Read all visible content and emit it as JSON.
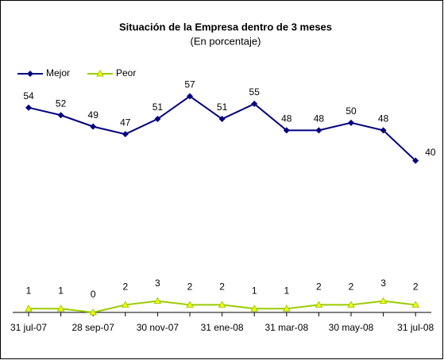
{
  "chart_data": {
    "type": "line",
    "title": "Situación de la Empresa dentro de 3 meses",
    "subtitle": "(En porcentaje)",
    "categories": [
      "31 jul-07",
      null,
      "28 sep-07",
      null,
      "30 nov-07",
      null,
      "31 ene-08",
      null,
      "31 mar-08",
      null,
      "30 may-08",
      null,
      "31 jul-08"
    ],
    "series": [
      {
        "name": "Mejor",
        "color": "#000080",
        "values": [
          54,
          52,
          49,
          47,
          51,
          57,
          51,
          55,
          48,
          48,
          50,
          48,
          40
        ]
      },
      {
        "name": "Peor",
        "color": "#99CC00",
        "values": [
          1,
          1,
          0,
          2,
          3,
          2,
          2,
          1,
          1,
          2,
          2,
          3,
          2
        ]
      }
    ],
    "ylim": [
      0,
      60
    ],
    "legend": "top-left"
  }
}
